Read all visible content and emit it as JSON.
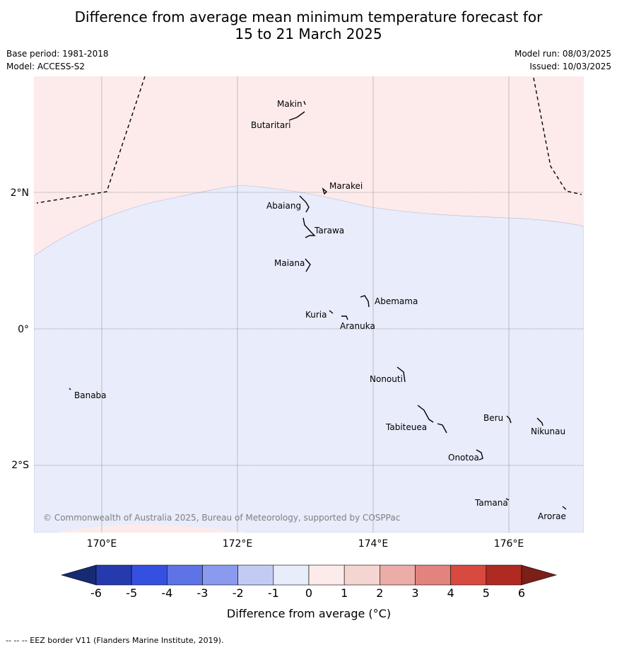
{
  "title_line1": "Difference from average mean minimum temperature forecast for",
  "title_line2": "15 to 21 March 2025",
  "base_period": "Base period: 1981-2018",
  "model": "Model: ACCESS-S2",
  "model_run": "Model run: 08/03/2025",
  "issued": "Issued: 10/03/2025",
  "map": {
    "lon_labels": [
      "170°E",
      "172°E",
      "174°E",
      "176°E"
    ],
    "lat_labels": [
      "2°N",
      "0°",
      "2°S"
    ],
    "copyright": "© Commonwealth of Australia 2025, Bureau of Meteorology, supported by COSPPac",
    "places": [
      "Makin",
      "Butaritari",
      "Marakei",
      "Abaiang",
      "Tarawa",
      "Maiana",
      "Abemama",
      "Kuria",
      "Aranuka",
      "Banaba",
      "Nonouti",
      "Beru",
      "Nikunau",
      "Tabiteuea",
      "Onotoa",
      "Tamana",
      "Arorae"
    ]
  },
  "colorbar": {
    "ticks": [
      "-6",
      "-5",
      "-4",
      "-3",
      "-2",
      "-1",
      "0",
      "1",
      "2",
      "3",
      "4",
      "5",
      "6"
    ],
    "colors": [
      "#243aad",
      "#3550e0",
      "#5d73e6",
      "#8a9bef",
      "#c3cbf5",
      "#e8ecfb",
      "#fcebea",
      "#f4d5d2",
      "#ecaca8",
      "#e3837e",
      "#d84a3f",
      "#ae2a22"
    ],
    "low_extend_color": "#172a72",
    "high_extend_color": "#7b1f18",
    "label": "Difference from average (°C)"
  },
  "footnote": "-- -- -- EEZ border V11 (Flanders Marine Institute, 2019)."
}
